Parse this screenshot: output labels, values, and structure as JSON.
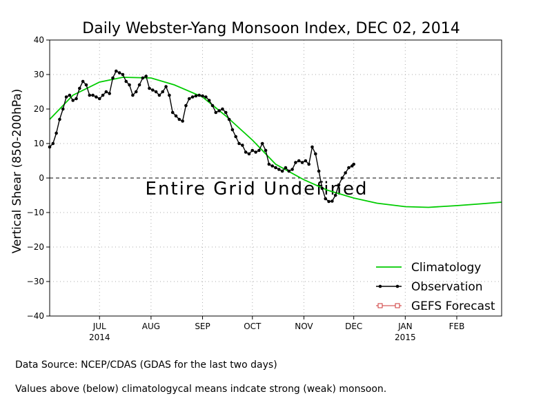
{
  "chart_data": {
    "type": "line",
    "title": "Daily Webster-Yang Monsoon Index, DEC 02, 2014",
    "ylabel": "Vertical Shear (850-200hPa)",
    "xlabel": "",
    "ylim": [
      -40,
      40
    ],
    "yticks": [
      40,
      30,
      20,
      10,
      0,
      -10,
      -20,
      -30,
      -40
    ],
    "ytick_labels": [
      "40",
      "30",
      "20",
      "10",
      "0",
      "−10",
      "−20",
      "−30",
      "−40"
    ],
    "xlim": [
      "2014-06-01",
      "2015-02-28"
    ],
    "xticks": [
      {
        "date": "2014-07-01",
        "label": "JUL",
        "year": "2014"
      },
      {
        "date": "2014-08-01",
        "label": "AUG",
        "year": ""
      },
      {
        "date": "2014-09-01",
        "label": "SEP",
        "year": ""
      },
      {
        "date": "2014-10-01",
        "label": "OCT",
        "year": ""
      },
      {
        "date": "2014-11-01",
        "label": "NOV",
        "year": ""
      },
      {
        "date": "2014-12-01",
        "label": "DEC",
        "year": ""
      },
      {
        "date": "2015-01-01",
        "label": "JAN",
        "year": "2015"
      },
      {
        "date": "2015-02-01",
        "label": "FEB",
        "year": ""
      }
    ],
    "grid": true,
    "zero_line": "dashed",
    "annotation": "Entire Grid Undefined",
    "legend": {
      "position": "bottom-right",
      "entries": [
        {
          "name": "Climatology",
          "color": "#00cc00",
          "style": "line"
        },
        {
          "name": "Observation",
          "color": "#000000",
          "style": "line-dot"
        },
        {
          "name": "GEFS Forecast",
          "color": "#cc3333",
          "style": "line-square"
        }
      ]
    },
    "series": [
      {
        "name": "Climatology",
        "color": "#00cc00",
        "x": [
          "2014-06-01",
          "2014-06-15",
          "2014-07-01",
          "2014-07-15",
          "2014-08-01",
          "2014-08-15",
          "2014-09-01",
          "2014-09-15",
          "2014-10-01",
          "2014-10-15",
          "2014-11-01",
          "2014-11-15",
          "2014-12-01",
          "2014-12-15",
          "2015-01-01",
          "2015-01-15",
          "2015-02-01",
          "2015-02-15",
          "2015-02-28"
        ],
        "values": [
          17.0,
          24.0,
          27.8,
          29.2,
          29.0,
          27.0,
          23.5,
          18.0,
          11.0,
          4.0,
          -0.5,
          -3.5,
          -5.8,
          -7.3,
          -8.3,
          -8.5,
          -8.0,
          -7.5,
          -7.0
        ]
      },
      {
        "name": "Observation",
        "color": "#000000",
        "x": [
          "2014-06-01",
          "2014-06-03",
          "2014-06-05",
          "2014-06-07",
          "2014-06-09",
          "2014-06-11",
          "2014-06-13",
          "2014-06-15",
          "2014-06-17",
          "2014-06-19",
          "2014-06-21",
          "2014-06-23",
          "2014-06-25",
          "2014-06-27",
          "2014-06-29",
          "2014-07-01",
          "2014-07-03",
          "2014-07-05",
          "2014-07-07",
          "2014-07-09",
          "2014-07-11",
          "2014-07-13",
          "2014-07-15",
          "2014-07-17",
          "2014-07-19",
          "2014-07-21",
          "2014-07-23",
          "2014-07-25",
          "2014-07-27",
          "2014-07-29",
          "2014-07-31",
          "2014-08-02",
          "2014-08-04",
          "2014-08-06",
          "2014-08-08",
          "2014-08-10",
          "2014-08-12",
          "2014-08-14",
          "2014-08-16",
          "2014-08-18",
          "2014-08-20",
          "2014-08-22",
          "2014-08-24",
          "2014-08-26",
          "2014-08-28",
          "2014-08-30",
          "2014-09-01",
          "2014-09-03",
          "2014-09-05",
          "2014-09-07",
          "2014-09-09",
          "2014-09-11",
          "2014-09-13",
          "2014-09-15",
          "2014-09-17",
          "2014-09-19",
          "2014-09-21",
          "2014-09-23",
          "2014-09-25",
          "2014-09-27",
          "2014-09-29",
          "2014-10-01",
          "2014-10-03",
          "2014-10-05",
          "2014-10-07",
          "2014-10-09",
          "2014-10-11",
          "2014-10-13",
          "2014-10-15",
          "2014-10-17",
          "2014-10-19",
          "2014-10-21",
          "2014-10-23",
          "2014-10-25",
          "2014-10-27",
          "2014-10-29",
          "2014-10-31",
          "2014-11-02",
          "2014-11-04",
          "2014-11-06",
          "2014-11-08",
          "2014-11-10",
          "2014-11-12",
          "2014-11-14",
          "2014-11-16",
          "2014-11-18",
          "2014-11-20",
          "2014-11-22",
          "2014-11-24",
          "2014-11-26",
          "2014-11-28",
          "2014-11-30",
          "2014-12-01"
        ],
        "values": [
          9,
          10,
          13,
          17,
          20,
          23.5,
          24,
          22.5,
          23,
          26,
          28,
          27,
          24,
          24,
          23.5,
          23,
          24,
          25,
          24.5,
          29,
          31,
          30.5,
          30,
          28,
          27,
          24,
          25,
          27,
          29,
          29.5,
          26,
          25.5,
          25,
          24,
          25,
          26.5,
          24,
          19,
          18,
          17,
          16.5,
          21,
          23,
          23.5,
          23.8,
          24,
          23.8,
          23.5,
          22.5,
          21,
          19,
          19.5,
          20,
          19,
          17,
          14,
          12,
          10,
          9.5,
          7.5,
          7,
          8,
          7.5,
          8,
          10,
          8,
          4,
          3.5,
          3,
          2.5,
          2,
          3,
          2,
          2.5,
          4.5,
          5,
          4.5,
          5,
          4,
          9,
          7,
          2,
          -3,
          -6,
          -6.8,
          -6.7,
          -5,
          -2,
          0,
          1.5,
          3,
          3.5,
          4
        ]
      },
      {
        "name": "GEFS Forecast",
        "color": "#cc3333",
        "x": [],
        "values": []
      }
    ]
  },
  "footnotes": {
    "source": "Data Source: NCEP/CDAS (GDAS for the last two days)",
    "note": "Values above (below) climatologycal means indcate strong (weak) monsoon."
  }
}
